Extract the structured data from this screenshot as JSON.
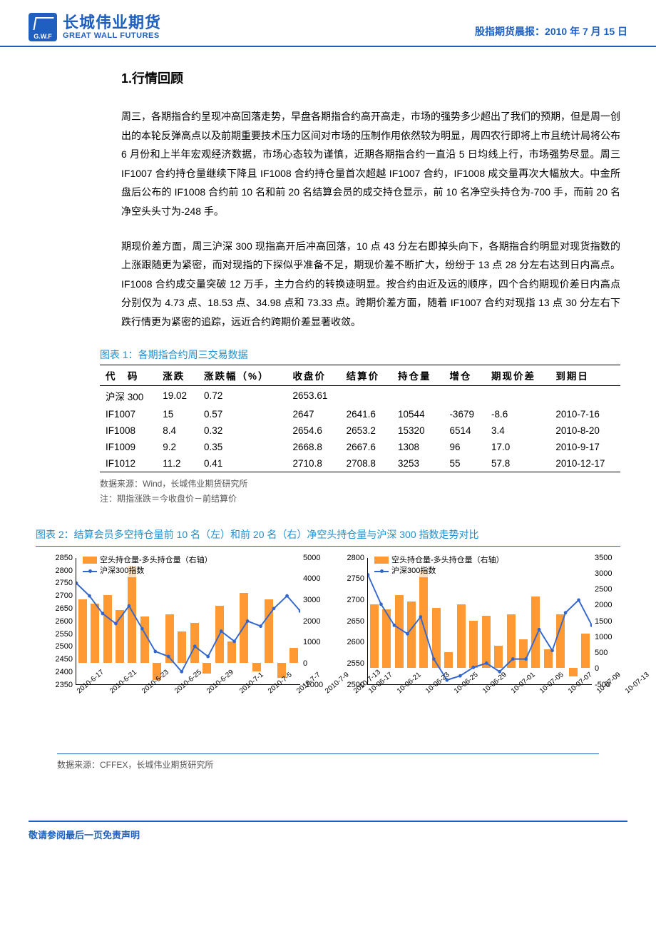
{
  "header": {
    "logo_abbr": "G.W.F",
    "company_cn": "长城伟业期货",
    "company_en": "GREAT WALL FUTURES",
    "report_label": "股指期货晨报：",
    "report_date": "2010 年 7 月 15 日"
  },
  "section1": {
    "title": "1.行情回顾",
    "para1": "周三，各期指合约呈现冲高回落走势，早盘各期指合约高开高走，市场的强势多少超出了我们的预期，但是周一创出的本轮反弹高点以及前期重要技术压力区间对市场的压制作用依然较为明显，周四农行即将上市且统计局将公布 6 月份和上半年宏观经济数据，市场心态较为谨慎，近期各期指合约一直沿 5 日均线上行，市场强势尽显。周三 IF1007 合约持仓量继续下降且 IF1008 合约持仓量首次超越 IF1007 合约，IF1008 成交量再次大幅放大。中金所盘后公布的 IF1008 合约前 10 名和前 20 名结算会员的成交持仓显示，前 10 名净空头持仓为-700 手，而前 20 名净空头头寸为-248 手。",
    "para2": "期现价差方面，周三沪深 300 现指高开后冲高回落，10 点 43 分左右即掉头向下，各期指合约明显对现货指数的上涨跟随更为紧密，而对现指的下探似乎准备不足，期现价差不断扩大，纷纷于 13 点 28 分左右达到日内高点。IF1008 合约成交量突破 12 万手，主力合约的转换迹明显。按合约由近及远的顺序，四个合约期现价差日内高点分别仅为 4.73 点、18.53 点、34.98 点和 73.33 点。跨期价差方面，随着 IF1007 合约对现指 13 点 30 分左右下跌行情更为紧密的追踪，远近合约跨期价差显著收敛。"
  },
  "table1": {
    "caption": "图表 1：各期指合约周三交易数据",
    "columns": [
      "代　码",
      "涨跌",
      "涨跌幅（%）",
      "收盘价",
      "结算价",
      "持仓量",
      "增仓",
      "期现价差",
      "到期日"
    ],
    "rows": [
      [
        "沪深 300",
        "19.02",
        "0.72",
        "2653.61",
        "",
        "",
        "",
        "",
        ""
      ],
      [
        "IF1007",
        "15",
        "0.57",
        "2647",
        "2641.6",
        "10544",
        "-3679",
        "-8.6",
        "2010-7-16"
      ],
      [
        "IF1008",
        "8.4",
        "0.32",
        "2654.6",
        "2653.2",
        "15320",
        "6514",
        "3.4",
        "2010-8-20"
      ],
      [
        "IF1009",
        "9.2",
        "0.35",
        "2668.8",
        "2667.6",
        "1308",
        "96",
        "17.0",
        "2010-9-17"
      ],
      [
        "IF1012",
        "11.2",
        "0.41",
        "2710.8",
        "2708.8",
        "3253",
        "55",
        "57.8",
        "2010-12-17"
      ]
    ],
    "source": "数据来源：Wind，长城伟业期货研究所",
    "note": "注：期指涨跌＝今收盘价－前结算价"
  },
  "chart2": {
    "caption": "图表 2：结算会员多空持仓量前 10 名（左）和前 20 名（右）净空头持仓量与沪深 300 指数走势对比",
    "source": "数据来源：CFFEX，长城伟业期货研究所",
    "x_labels_left": [
      "2010-6-17",
      "2010-6-21",
      "2010-6-23",
      "2010-6-25",
      "2010-6-29",
      "2010-7-1",
      "2010-7-5",
      "2010-7-7",
      "2010-7-9",
      "2010-7-13"
    ],
    "x_labels_right": [
      "10-06-17",
      "10-06-21",
      "10-06-23",
      "10-06-25",
      "10-06-29",
      "10-07-01",
      "10-07-05",
      "10-07-07",
      "10-07-09",
      "10-07-13"
    ],
    "left": {
      "legend_bar": "空头持仓量-多头持仓量（右轴）",
      "legend_line": "沪深300指数",
      "bar_color": "#ff9933",
      "line_color": "#3366cc",
      "y_left": {
        "min": 2350,
        "max": 2850,
        "step": 50,
        "ticks": [
          2850,
          2800,
          2750,
          2700,
          2650,
          2600,
          2550,
          2500,
          2450,
          2400,
          2350
        ]
      },
      "y_right": {
        "min": -1000,
        "max": 5000,
        "step": 1000,
        "ticks": [
          5000,
          4000,
          3000,
          2000,
          1000,
          0,
          -1000
        ]
      },
      "bar_values": [
        3000,
        2800,
        3200,
        2500,
        4600,
        2200,
        -800,
        2300,
        1500,
        1900,
        -500,
        2700,
        1000,
        3300,
        -400,
        3000,
        -700,
        700
      ],
      "line_values": [
        2750,
        2700,
        2630,
        2590,
        2660,
        2570,
        2480,
        2460,
        2400,
        2500,
        2460,
        2560,
        2520,
        2600,
        2580,
        2650,
        2700,
        2640
      ]
    },
    "right": {
      "legend_bar": "空头持仓量-多头持仓量（右轴）",
      "legend_line": "沪深300指数",
      "bar_color": "#ff9933",
      "line_color": "#3366cc",
      "y_left": {
        "min": 2500,
        "max": 2800,
        "step": 50,
        "ticks": [
          2800,
          2750,
          2700,
          2650,
          2600,
          2550,
          2500
        ]
      },
      "y_right": {
        "min": -500,
        "max": 3500,
        "step": 500,
        "ticks": [
          3500,
          3000,
          2500,
          2000,
          1500,
          1000,
          500,
          0,
          -500
        ]
      },
      "bar_values": [
        2000,
        1850,
        2300,
        2100,
        3100,
        1900,
        500,
        2000,
        1500,
        1650,
        700,
        1700,
        900,
        2250,
        600,
        1700,
        -250,
        1100
      ],
      "line_values": [
        2760,
        2690,
        2640,
        2620,
        2660,
        2560,
        2510,
        2520,
        2540,
        2550,
        2530,
        2560,
        2560,
        2630,
        2580,
        2670,
        2700,
        2640
      ]
    }
  },
  "footer": "敬请参阅最后一页免责声明"
}
